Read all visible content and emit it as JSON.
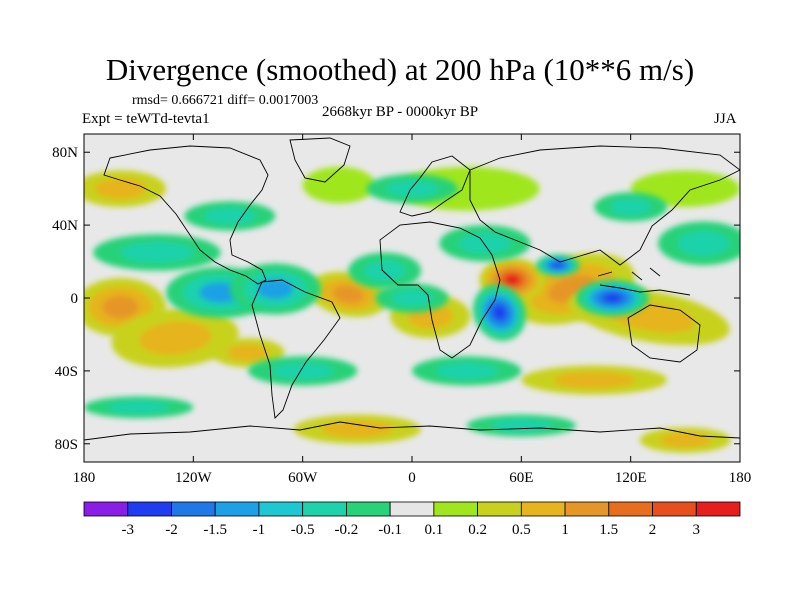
{
  "title": "Divergence (smoothed) at 200 hPa (10**6 m/s)",
  "stats_text": "rmsd= 0.666721 diff= 0.0017003",
  "experiment_text": "Expt = teWTd-tevta1",
  "period_text": "2668kyr BP - 0000kyr BP",
  "season_text": "JJA",
  "map": {
    "longitude_range": [
      -180,
      180
    ],
    "latitude_range": [
      -90,
      90
    ],
    "lon_ticks": [
      {
        "value": -180,
        "label": "180"
      },
      {
        "value": -120,
        "label": "120W"
      },
      {
        "value": -60,
        "label": "60W"
      },
      {
        "value": 0,
        "label": "0"
      },
      {
        "value": 60,
        "label": "60E"
      },
      {
        "value": 120,
        "label": "120E"
      },
      {
        "value": 180,
        "label": "180"
      }
    ],
    "lat_ticks": [
      {
        "value": 80,
        "label": "80N"
      },
      {
        "value": 40,
        "label": "40N"
      },
      {
        "value": 0,
        "label": "0"
      },
      {
        "value": -40,
        "label": "40S"
      },
      {
        "value": -80,
        "label": "80S"
      }
    ],
    "background_color": "#e8e8e8",
    "field_blobs": [
      {
        "lon": 88,
        "lat": 5,
        "rlon": 35,
        "rlat": 18,
        "level": 2,
        "rot": -15
      },
      {
        "lon": 55,
        "lat": 10,
        "rlon": 18,
        "rlat": 12,
        "level": 3,
        "rot": 0
      },
      {
        "lon": 130,
        "lat": -10,
        "rlon": 45,
        "rlat": 14,
        "level": 1,
        "rot": 10
      },
      {
        "lon": -160,
        "lat": -5,
        "rlon": 25,
        "rlat": 16,
        "level": 2,
        "rot": 0
      },
      {
        "lon": -130,
        "lat": -22,
        "rlon": 35,
        "rlat": 16,
        "level": 1,
        "rot": -5
      },
      {
        "lon": -35,
        "lat": 2,
        "rlon": 22,
        "rlat": 12,
        "level": 2,
        "rot": 10
      },
      {
        "lon": 10,
        "lat": -10,
        "rlon": 22,
        "rlat": 12,
        "level": 1,
        "rot": 0
      },
      {
        "lon": -90,
        "lat": -30,
        "rlon": 20,
        "rlat": 8,
        "level": 1,
        "rot": 0
      },
      {
        "lon": 30,
        "lat": 60,
        "rlon": 40,
        "rlat": 12,
        "level": 0,
        "rot": 0
      },
      {
        "lon": 150,
        "lat": 60,
        "rlon": 30,
        "rlat": 10,
        "level": 0,
        "rot": 0
      },
      {
        "lon": -160,
        "lat": 60,
        "rlon": 25,
        "rlat": 10,
        "level": 1,
        "rot": 0
      },
      {
        "lon": -40,
        "lat": 62,
        "rlon": 20,
        "rlat": 10,
        "level": 0,
        "rot": 0
      },
      {
        "lon": 100,
        "lat": -45,
        "rlon": 40,
        "rlat": 8,
        "level": 1,
        "rot": 0
      },
      {
        "lon": -30,
        "lat": -72,
        "rlon": 35,
        "rlat": 8,
        "level": 1,
        "rot": 0
      },
      {
        "lon": 150,
        "lat": -78,
        "rlon": 25,
        "rlat": 7,
        "level": 1,
        "rot": 0
      },
      {
        "lon": -105,
        "lat": 3,
        "rlon": 30,
        "rlat": 14,
        "level": -2,
        "rot": 0
      },
      {
        "lon": 48,
        "lat": -8,
        "rlon": 14,
        "rlat": 16,
        "level": -3,
        "rot": -30
      },
      {
        "lon": 80,
        "lat": 18,
        "rlon": 12,
        "rlat": 6,
        "level": -3,
        "rot": 0
      },
      {
        "lon": 110,
        "lat": 0,
        "rlon": 20,
        "rlat": 10,
        "level": -3,
        "rot": 0
      },
      {
        "lon": -75,
        "lat": 5,
        "rlon": 25,
        "rlat": 14,
        "level": -2,
        "rot": 0
      },
      {
        "lon": -15,
        "lat": 15,
        "rlon": 20,
        "rlat": 10,
        "level": -1,
        "rot": 0
      },
      {
        "lon": 0,
        "lat": 0,
        "rlon": 20,
        "rlat": 8,
        "level": -1,
        "rot": 0
      },
      {
        "lon": 40,
        "lat": 30,
        "rlon": 25,
        "rlat": 10,
        "level": -1,
        "rot": 0
      },
      {
        "lon": -140,
        "lat": 25,
        "rlon": 35,
        "rlat": 10,
        "level": -1,
        "rot": 0
      },
      {
        "lon": 160,
        "lat": 30,
        "rlon": 25,
        "rlat": 12,
        "level": -1,
        "rot": 0
      },
      {
        "lon": -60,
        "lat": -40,
        "rlon": 30,
        "rlat": 8,
        "level": -1,
        "rot": 0
      },
      {
        "lon": 30,
        "lat": -40,
        "rlon": 30,
        "rlat": 8,
        "level": -1,
        "rot": 0
      },
      {
        "lon": 0,
        "lat": 60,
        "rlon": 25,
        "rlat": 8,
        "level": -1,
        "rot": 0
      },
      {
        "lon": -100,
        "lat": 45,
        "rlon": 25,
        "rlat": 8,
        "level": -1,
        "rot": 0
      },
      {
        "lon": 120,
        "lat": 50,
        "rlon": 20,
        "rlat": 8,
        "level": -1,
        "rot": 0
      },
      {
        "lon": -150,
        "lat": -60,
        "rlon": 30,
        "rlat": 6,
        "level": -1,
        "rot": 0
      },
      {
        "lon": 60,
        "lat": -70,
        "rlon": 30,
        "rlat": 6,
        "level": -1,
        "rot": 0
      }
    ]
  },
  "colorbar": {
    "colors": [
      "#8a1ee6",
      "#1e3cf0",
      "#1e78e6",
      "#1ea0e6",
      "#1ec8d2",
      "#1ed2aa",
      "#28d278",
      "#e6e6e6",
      "#a0e61e",
      "#c8d21e",
      "#e6b41e",
      "#e69628",
      "#e66e1e",
      "#e6501e",
      "#e61e1e"
    ],
    "labels": [
      "-3",
      "-2",
      "-1.5",
      "-1",
      "-0.5",
      "-0.2",
      "-0.1",
      "0.1",
      "0.2",
      "0.5",
      "1",
      "1.5",
      "2",
      "3"
    ]
  }
}
